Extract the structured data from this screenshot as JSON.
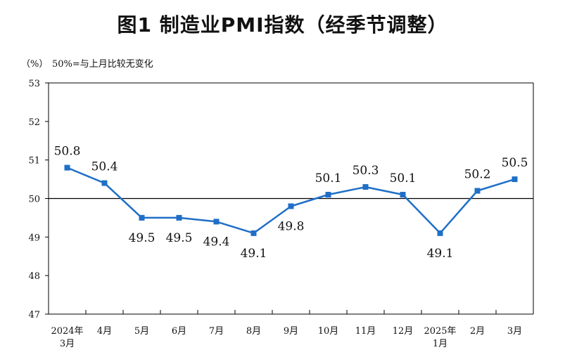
{
  "title": "图1  制造业PMI指数（经季节调整）",
  "unit_label": "（%）",
  "note": "50%=与上月比较无变化",
  "colors": {
    "line": "#1f6fc7",
    "baseline": "#000000",
    "axis": "#000000"
  },
  "chart_data": {
    "type": "line",
    "title": "图1  制造业PMI指数（经季节调整）",
    "ylabel": "（%）",
    "ylim": [
      47,
      53
    ],
    "yticks": [
      47,
      48,
      49,
      50,
      51,
      52,
      53
    ],
    "reference_line": 50,
    "grid": false,
    "categories": [
      [
        "2024年",
        "3月"
      ],
      [
        "4月"
      ],
      [
        "5月"
      ],
      [
        "6月"
      ],
      [
        "7月"
      ],
      [
        "8月"
      ],
      [
        "9月"
      ],
      [
        "10月"
      ],
      [
        "11月"
      ],
      [
        "12月"
      ],
      [
        "2025年",
        "1月"
      ],
      [
        "2月"
      ],
      [
        "3月"
      ]
    ],
    "values": [
      50.8,
      50.4,
      49.5,
      49.5,
      49.4,
      49.1,
      49.8,
      50.1,
      50.3,
      50.1,
      49.1,
      50.2,
      50.5
    ],
    "labels": [
      "50.8",
      "50.4",
      "49.5",
      "49.5",
      "49.4",
      "49.1",
      "49.8",
      "50.1",
      "50.3",
      "50.1",
      "49.1",
      "50.2",
      "50.5"
    ],
    "label_position": [
      "above",
      "above",
      "below",
      "below",
      "below",
      "below",
      "below",
      "above",
      "above",
      "above",
      "below",
      "above",
      "above"
    ]
  }
}
